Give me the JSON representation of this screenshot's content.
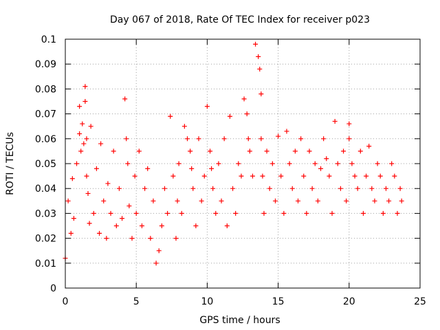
{
  "chart_data": {
    "type": "scatter",
    "title": "Day 067 of 2018, Rate Of TEC Index for receiver p023",
    "xlabel": "GPS time / hours",
    "ylabel": "ROTI / TECUs",
    "xlim": [
      0,
      25
    ],
    "ylim": [
      0,
      0.1
    ],
    "xticks": [
      0,
      5,
      10,
      15,
      20,
      25
    ],
    "xtick_labels": [
      "0",
      "5",
      "10",
      "15",
      "20",
      "25"
    ],
    "yticks": [
      0,
      0.01,
      0.02,
      0.03,
      0.04,
      0.05,
      0.06,
      0.07,
      0.08,
      0.09,
      0.1
    ],
    "ytick_labels": [
      "0",
      "0.01",
      "0.02",
      "0.03",
      "0.04",
      "0.05",
      "0.06",
      "0.07",
      "0.08",
      "0.09",
      "0.1"
    ],
    "grid": true,
    "marker": "+",
    "color": "#ff0000",
    "series": [
      {
        "name": "ROTI",
        "x": [
          0.0,
          0.2,
          0.4,
          0.5,
          0.6,
          0.8,
          1.0,
          1.0,
          1.1,
          1.2,
          1.3,
          1.4,
          1.4,
          1.5,
          1.5,
          1.6,
          1.7,
          1.8,
          2.0,
          2.2,
          2.4,
          2.5,
          2.7,
          2.9,
          3.0,
          3.2,
          3.4,
          3.6,
          3.8,
          4.0,
          4.2,
          4.3,
          4.4,
          4.5,
          4.7,
          4.9,
          5.0,
          5.2,
          5.4,
          5.6,
          5.8,
          6.0,
          6.2,
          6.4,
          6.6,
          6.8,
          7.0,
          7.2,
          7.4,
          7.6,
          7.8,
          7.9,
          8.0,
          8.2,
          8.4,
          8.6,
          8.8,
          8.9,
          9.0,
          9.2,
          9.4,
          9.6,
          9.8,
          10.0,
          10.2,
          10.3,
          10.4,
          10.6,
          10.8,
          11.0,
          11.2,
          11.4,
          11.6,
          11.8,
          12.0,
          12.2,
          12.4,
          12.6,
          12.8,
          12.9,
          13.0,
          13.2,
          13.4,
          13.6,
          13.7,
          13.8,
          13.8,
          13.9,
          14.0,
          14.2,
          14.4,
          14.6,
          14.8,
          15.0,
          15.2,
          15.4,
          15.6,
          15.8,
          16.0,
          16.2,
          16.4,
          16.6,
          16.8,
          17.0,
          17.2,
          17.4,
          17.6,
          17.8,
          18.0,
          18.2,
          18.4,
          18.6,
          18.8,
          19.0,
          19.2,
          19.4,
          19.6,
          19.8,
          20.0,
          20.0,
          20.2,
          20.4,
          20.6,
          20.8,
          21.0,
          21.2,
          21.4,
          21.6,
          21.8,
          22.0,
          22.2,
          22.4,
          22.6,
          22.8,
          23.0,
          23.2,
          23.4,
          23.6,
          23.7
        ],
        "y": [
          0.012,
          0.035,
          0.022,
          0.044,
          0.028,
          0.05,
          0.073,
          0.062,
          0.055,
          0.066,
          0.058,
          0.081,
          0.075,
          0.06,
          0.045,
          0.038,
          0.026,
          0.065,
          0.03,
          0.048,
          0.022,
          0.058,
          0.035,
          0.02,
          0.042,
          0.03,
          0.055,
          0.025,
          0.04,
          0.028,
          0.076,
          0.06,
          0.05,
          0.033,
          0.02,
          0.045,
          0.03,
          0.055,
          0.025,
          0.04,
          0.048,
          0.02,
          0.035,
          0.01,
          0.015,
          0.025,
          0.04,
          0.03,
          0.069,
          0.045,
          0.02,
          0.035,
          0.05,
          0.03,
          0.065,
          0.06,
          0.055,
          0.048,
          0.04,
          0.025,
          0.06,
          0.035,
          0.045,
          0.073,
          0.055,
          0.048,
          0.04,
          0.03,
          0.05,
          0.035,
          0.06,
          0.025,
          0.069,
          0.04,
          0.03,
          0.05,
          0.045,
          0.076,
          0.07,
          0.06,
          0.055,
          0.045,
          0.098,
          0.093,
          0.088,
          0.078,
          0.06,
          0.045,
          0.03,
          0.055,
          0.04,
          0.05,
          0.035,
          0.061,
          0.045,
          0.03,
          0.063,
          0.05,
          0.04,
          0.055,
          0.035,
          0.06,
          0.045,
          0.03,
          0.055,
          0.04,
          0.05,
          0.035,
          0.048,
          0.06,
          0.052,
          0.045,
          0.03,
          0.067,
          0.05,
          0.04,
          0.055,
          0.035,
          0.066,
          0.06,
          0.05,
          0.045,
          0.04,
          0.055,
          0.03,
          0.045,
          0.057,
          0.04,
          0.035,
          0.05,
          0.045,
          0.03,
          0.04,
          0.035,
          0.05,
          0.045,
          0.03,
          0.04,
          0.035
        ]
      }
    ]
  }
}
